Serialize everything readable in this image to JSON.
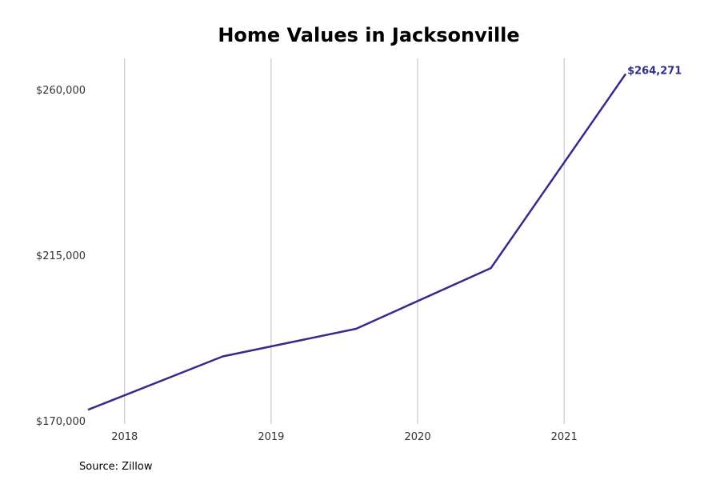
{
  "chart_data": {
    "type": "line",
    "title": "Home Values in Jacksonville",
    "xlabel": "",
    "ylabel": "",
    "x_ticks": [
      2018,
      2019,
      2020,
      2021
    ],
    "y_ticks": [
      170000,
      215000,
      260000
    ],
    "y_tick_labels": [
      "$170,000",
      "$215,000",
      "$260,000"
    ],
    "xlim": [
      2017.75,
      2021.9
    ],
    "ylim": [
      170000,
      268500
    ],
    "grid": "vertical",
    "series": [
      {
        "color": "#332c8c",
        "x": [
          2017.75,
          2018.67,
          2019.58,
          2020.5,
          2021.42
        ],
        "values": [
          173000,
          187500,
          195000,
          211500,
          264271
        ]
      }
    ],
    "end_label": "$264,271",
    "source": "Source: Zillow"
  }
}
